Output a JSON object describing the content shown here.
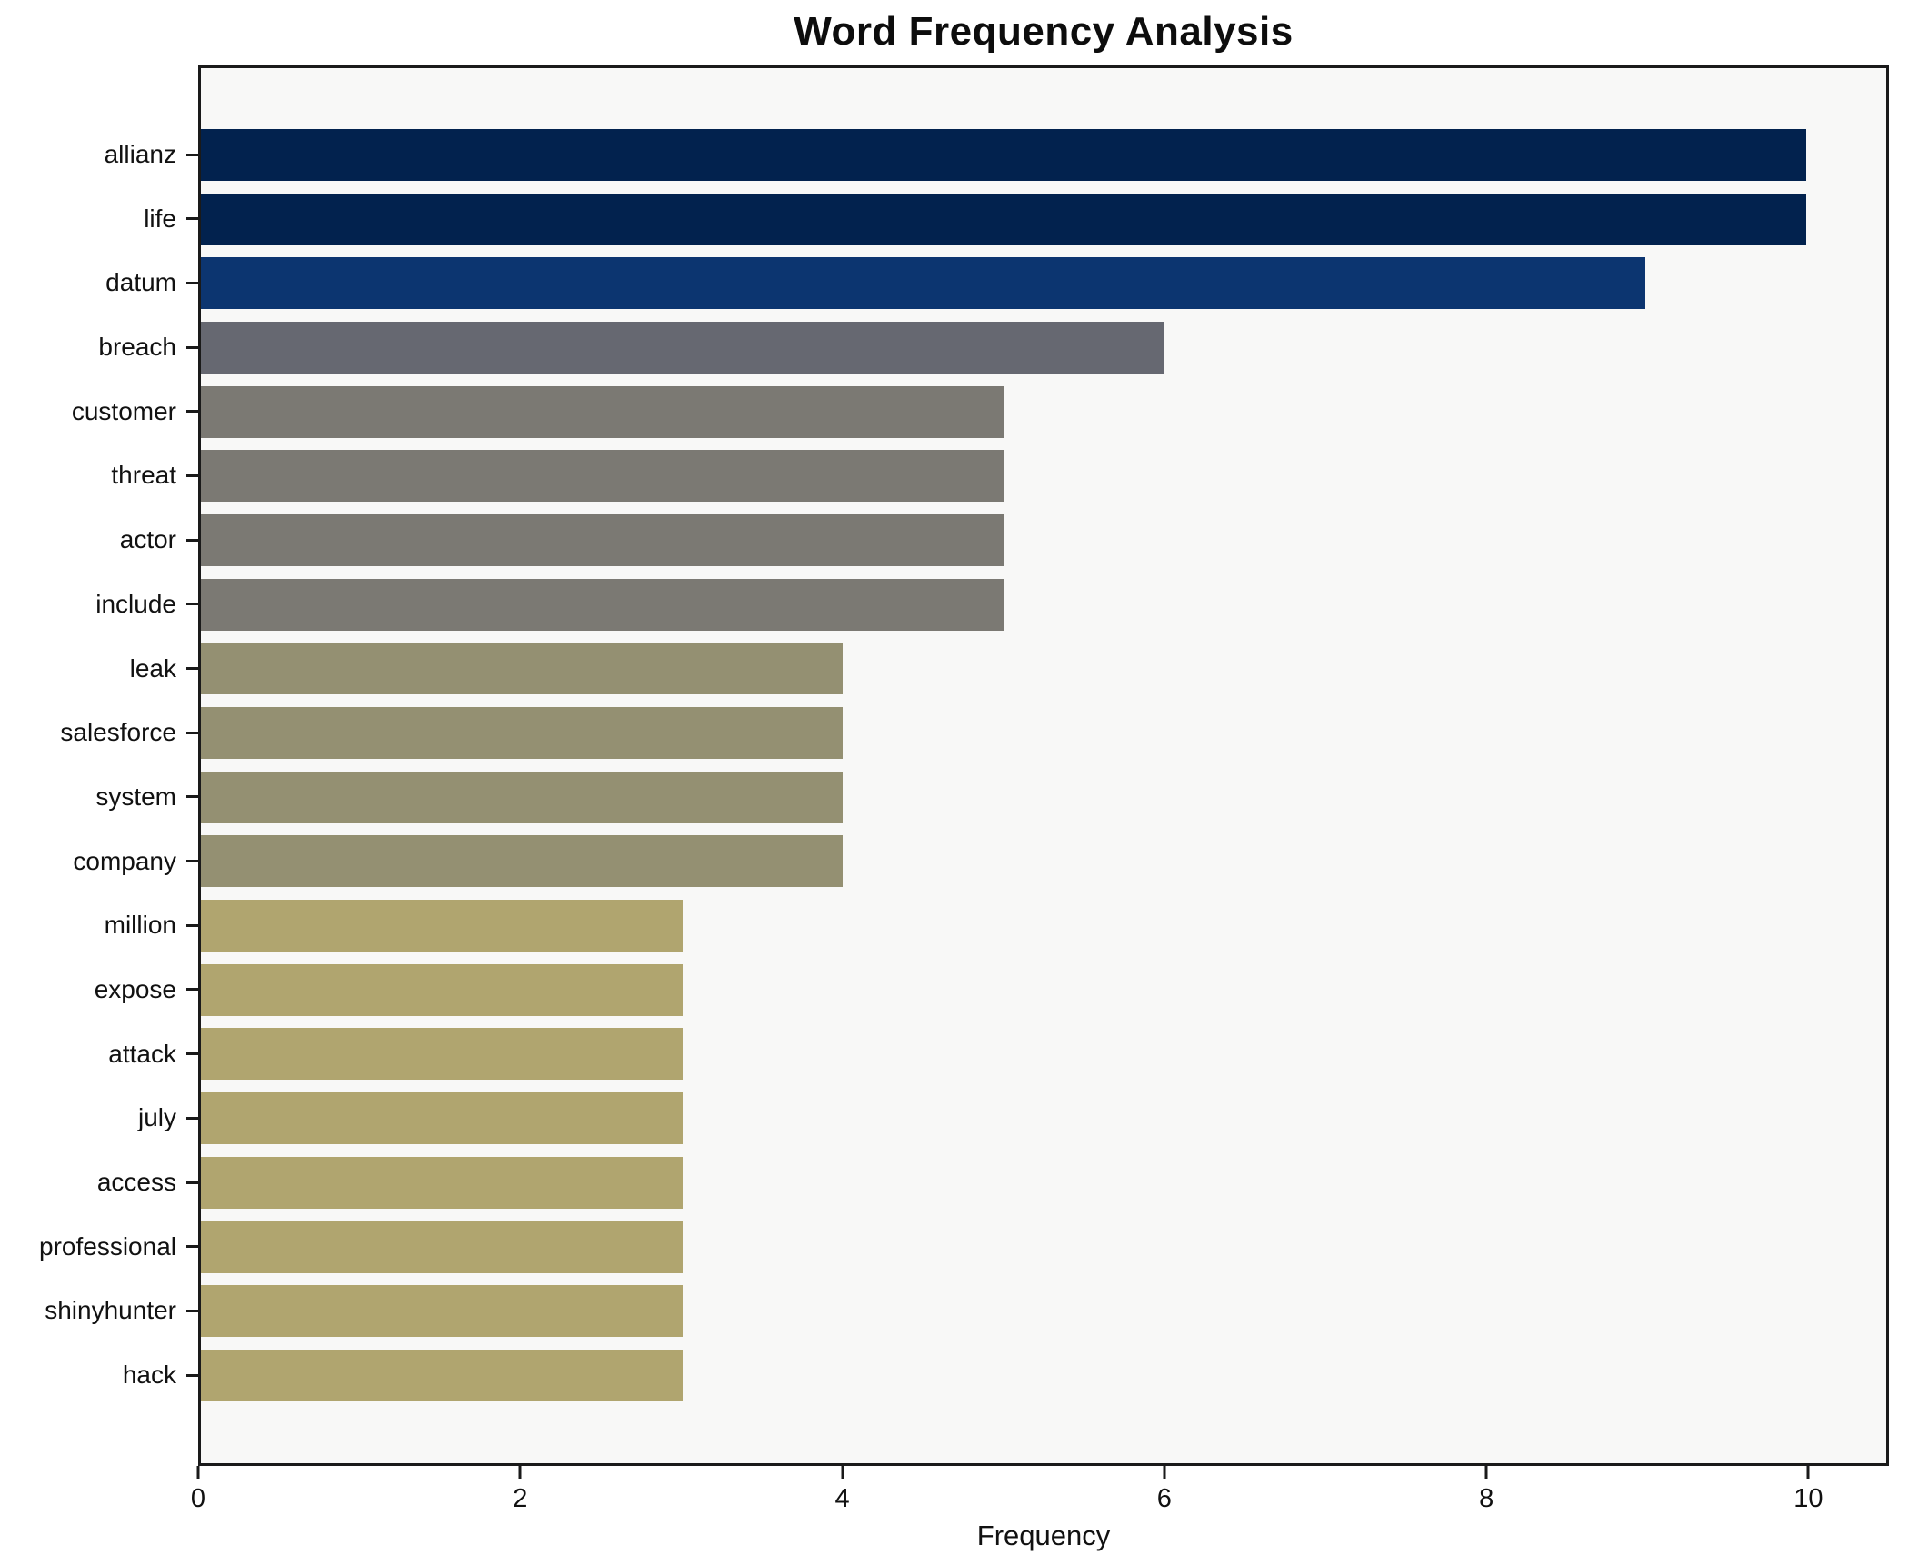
{
  "chart_data": {
    "type": "bar",
    "orientation": "horizontal",
    "title": "Word Frequency Analysis",
    "xlabel": "Frequency",
    "ylabel": "",
    "xlim": [
      0,
      10.5
    ],
    "xticks": [
      0,
      2,
      4,
      6,
      8,
      10
    ],
    "grid": false,
    "legend": null,
    "plot_background": "#f8f8f7",
    "spine_color": "#1a1a1a",
    "categories": [
      "allianz",
      "life",
      "datum",
      "breach",
      "customer",
      "threat",
      "actor",
      "include",
      "leak",
      "salesforce",
      "system",
      "company",
      "million",
      "expose",
      "attack",
      "july",
      "access",
      "professional",
      "shinyhunter",
      "hack"
    ],
    "values": [
      10,
      10,
      9,
      6,
      5,
      5,
      5,
      5,
      4,
      4,
      4,
      4,
      3,
      3,
      3,
      3,
      3,
      3,
      3,
      3
    ],
    "bar_colors": [
      "#02224e",
      "#02224e",
      "#0c3570",
      "#666871",
      "#7b7973",
      "#7b7973",
      "#7b7973",
      "#7b7973",
      "#949072",
      "#949072",
      "#949072",
      "#949072",
      "#b0a56f",
      "#b0a56f",
      "#b0a56f",
      "#b0a56f",
      "#b0a56f",
      "#b0a56f",
      "#b0a56f",
      "#b0a56f"
    ]
  }
}
